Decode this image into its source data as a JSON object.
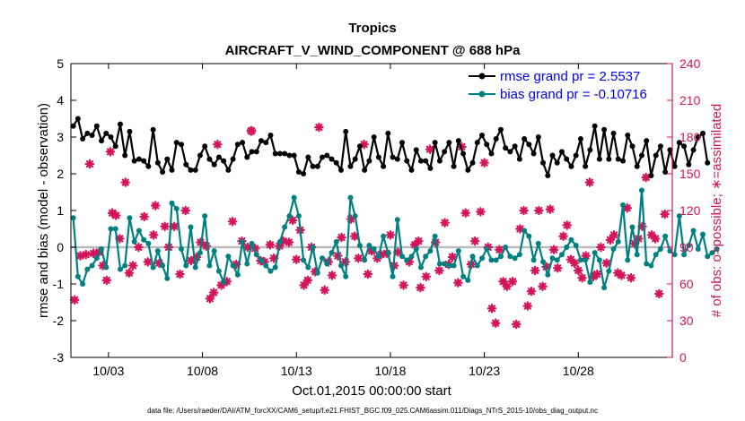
{
  "chart_data": {
    "type": "line",
    "title": "Tropics",
    "subtitle": "AIRCRAFT_V_WIND_COMPONENT @ 688 hPa",
    "xlabel": "Oct.01,2015 00:00:00 start",
    "ylabel": "rmse and bias (model - observation)",
    "y2label": "# of obs: o=possible; ∗=assimilated",
    "footnote": "data file: /Users/raeder/DAI/ATM_forcXX/CAM6_setup/f.e21.FHIST_BGC.f09_025.CAM6assim.011/Diags_NTrS_2015-10/obs_diag_output.nc",
    "xlim": [
      1,
      33.0
    ],
    "ylim": [
      -3,
      5
    ],
    "y2lim": [
      0,
      240
    ],
    "grid": false,
    "legend_position": "top-right",
    "x_tick_values": [
      3,
      8,
      13,
      18,
      23,
      28
    ],
    "x_tick_labels": [
      "10/03",
      "10/08",
      "10/13",
      "10/18",
      "10/23",
      "10/28"
    ],
    "y_ticks": [
      -3,
      -2,
      -1,
      0,
      1,
      2,
      3,
      4,
      5
    ],
    "y2_ticks": [
      0,
      30,
      60,
      90,
      120,
      150,
      180,
      210,
      240
    ],
    "legend": [
      {
        "label": "rmse grand pr = 2.5537",
        "color": "#000000"
      },
      {
        "label": "bias grand pr = -0.10716",
        "color": "#008080"
      }
    ],
    "zero_line_value": 0,
    "colors": {
      "rmse": "#000000",
      "bias": "#008080",
      "obs": "#d4145a",
      "zero": "#bbbbbb"
    },
    "series": [
      {
        "name": "rmse",
        "t0": 1.125,
        "dt": 0.25,
        "values": [
          3.3,
          3.5,
          2.95,
          3.1,
          3.05,
          3.3,
          2.9,
          3.1,
          3.0,
          2.75,
          3.35,
          2.5,
          3.15,
          2.35,
          2.4,
          2.35,
          2.2,
          3.2,
          2.3,
          2.05,
          2.4,
          2.1,
          2.85,
          2.8,
          2.25,
          2.1,
          2.1,
          2.5,
          2.75,
          2.4,
          2.25,
          2.45,
          2.35,
          2.1,
          2.4,
          2.8,
          2.85,
          2.45,
          2.6,
          2.6,
          2.9,
          2.85,
          3.05,
          2.55,
          2.55,
          2.55,
          2.5,
          2.5,
          2.05,
          2.0,
          2.45,
          2.2,
          2.2,
          2.45,
          2.5,
          2.4,
          2.3,
          2.1,
          3.15,
          2.2,
          2.4,
          2.75,
          2.1,
          2.35,
          3.0,
          2.45,
          2.2,
          3.1,
          2.45,
          2.4,
          2.85,
          2.35,
          2.1,
          2.65,
          2.35,
          2.35,
          2.15,
          2.85,
          2.35,
          2.6,
          2.85,
          2.2,
          2.9,
          2.55,
          2.1,
          2.3,
          2.85,
          3.05,
          2.8,
          2.55,
          2.95,
          3.2,
          2.7,
          2.6,
          2.75,
          2.4,
          2.95,
          2.8,
          2.55,
          3.0,
          2.3,
          1.95,
          2.5,
          2.3,
          2.6,
          2.4,
          2.2,
          2.5,
          2.95,
          2.2,
          2.65,
          3.3,
          2.4,
          3.2,
          2.4,
          3.1,
          2.4,
          2.35,
          3.05,
          2.75,
          2.2,
          2.5,
          2.9,
          1.95,
          2.5,
          2.75,
          2.05,
          2.65,
          2.2,
          2.85,
          2.75,
          2.25,
          2.65,
          3.0,
          3.1,
          2.3
        ]
      },
      {
        "name": "bias",
        "t0": 1.125,
        "dt": 0.25,
        "values": [
          0.8,
          -0.8,
          -1.0,
          -0.6,
          -0.5,
          -0.3,
          -0.05,
          -0.55,
          0.5,
          0.5,
          -0.6,
          -0.5,
          0.8,
          0.15,
          0.45,
          0.2,
          0.1,
          -0.55,
          -0.1,
          -0.5,
          -0.85,
          1.2,
          1.05,
          -0.05,
          -0.5,
          0.55,
          -0.55,
          -0.15,
          0.85,
          -0.5,
          -0.1,
          -0.65,
          -0.95,
          -0.25,
          -0.5,
          -0.75,
          0.15,
          -0.45,
          0.1,
          -0.2,
          -0.35,
          -0.5,
          -0.65,
          -0.55,
          0.15,
          0.55,
          0.85,
          1.35,
          0.85,
          -0.35,
          -0.55,
          0.0,
          -0.7,
          -0.3,
          -0.45,
          -0.15,
          0.15,
          -0.5,
          -0.8,
          1.35,
          0.85,
          0.05,
          -0.35,
          0.05,
          -0.05,
          -0.25,
          0.3,
          -0.15,
          -0.8,
          0.75,
          -0.25,
          -0.35,
          -0.25,
          -0.05,
          -0.55,
          -0.25,
          -0.1,
          0.3,
          -0.45,
          -0.45,
          -0.5,
          -0.5,
          -0.1,
          -0.8,
          -0.9,
          -0.25,
          -0.5,
          -0.3,
          -0.05,
          -0.35,
          -0.35,
          -0.25,
          0.0,
          -0.25,
          -0.3,
          -0.2,
          0.45,
          0.3,
          -0.35,
          0.1,
          -0.4,
          -0.75,
          -0.3,
          -0.35,
          -0.2,
          0.0,
          0.2,
          0.05,
          -0.35,
          -0.35,
          -0.95,
          -0.15,
          -0.35,
          -1.1,
          -0.65,
          -0.05,
          0.15,
          1.15,
          -0.35,
          0.55,
          -0.2,
          1.55,
          -0.45,
          -0.5,
          -0.2,
          -0.05,
          0.3,
          -0.1,
          -0.2,
          0.85,
          -0.2,
          0.05,
          0.45,
          -0.05,
          0.35,
          -0.25,
          -0.15,
          -0.05
        ]
      },
      {
        "name": "obs assimilated",
        "axis": "right",
        "points": [
          [
            1.2,
            47
          ],
          [
            1.5,
            83
          ],
          [
            1.8,
            84
          ],
          [
            2.0,
            158
          ],
          [
            2.2,
            85
          ],
          [
            2.5,
            86
          ],
          [
            2.7,
            75
          ],
          [
            2.9,
            63
          ],
          [
            3.1,
            168
          ],
          [
            3.2,
            118
          ],
          [
            3.4,
            116
          ],
          [
            3.6,
            97
          ],
          [
            3.9,
            143
          ],
          [
            4.1,
            69
          ],
          [
            4.3,
            75
          ],
          [
            4.6,
            90
          ],
          [
            4.9,
            115
          ],
          [
            5.1,
            78
          ],
          [
            5.4,
            100
          ],
          [
            5.5,
            124
          ],
          [
            5.7,
            77
          ],
          [
            6.0,
            107
          ],
          [
            6.2,
            90
          ],
          [
            6.5,
            107
          ],
          [
            6.8,
            68
          ],
          [
            7.1,
            120
          ],
          [
            7.4,
            79
          ],
          [
            7.7,
            82
          ],
          [
            7.9,
            94
          ],
          [
            8.2,
            91
          ],
          [
            8.4,
            48
          ],
          [
            8.6,
            53
          ],
          [
            8.8,
            174
          ],
          [
            9.0,
            59
          ],
          [
            9.3,
            62
          ],
          [
            9.6,
            111
          ],
          [
            9.8,
            76
          ],
          [
            10.1,
            95
          ],
          [
            10.4,
            90
          ],
          [
            10.6,
            185
          ],
          [
            10.8,
            89
          ],
          [
            11.1,
            79
          ],
          [
            11.3,
            78
          ],
          [
            11.6,
            92
          ],
          [
            11.8,
            81
          ],
          [
            12.1,
            91
          ],
          [
            12.3,
            95
          ],
          [
            12.6,
            94
          ],
          [
            12.8,
            112
          ],
          [
            13.0,
            80
          ],
          [
            13.2,
            104
          ],
          [
            13.4,
            59
          ],
          [
            13.6,
            63
          ],
          [
            13.8,
            90
          ],
          [
            14.0,
            70
          ],
          [
            14.2,
            188
          ],
          [
            14.5,
            55
          ],
          [
            14.7,
            78
          ],
          [
            14.9,
            67
          ],
          [
            15.2,
            83
          ],
          [
            15.4,
            98
          ],
          [
            15.6,
            78
          ],
          [
            15.9,
            113
          ],
          [
            16.1,
            99
          ],
          [
            16.3,
            81
          ],
          [
            16.6,
            174
          ],
          [
            16.8,
            68
          ],
          [
            17.0,
            87
          ],
          [
            17.3,
            81
          ],
          [
            17.5,
            84
          ],
          [
            17.8,
            85
          ],
          [
            18.0,
            100
          ],
          [
            18.2,
            75
          ],
          [
            18.4,
            86
          ],
          [
            18.7,
            59
          ],
          [
            19.0,
            78
          ],
          [
            19.3,
            92
          ],
          [
            19.5,
            95
          ],
          [
            19.6,
            57
          ],
          [
            19.9,
            66
          ],
          [
            20.1,
            170
          ],
          [
            20.4,
            94
          ],
          [
            20.6,
            71
          ],
          [
            20.9,
            110
          ],
          [
            21.1,
            76
          ],
          [
            21.3,
            82
          ],
          [
            21.6,
            61
          ],
          [
            21.8,
            172
          ],
          [
            22.0,
            118
          ],
          [
            22.3,
            76
          ],
          [
            22.5,
            95
          ],
          [
            22.8,
            119
          ],
          [
            23.0,
            159
          ],
          [
            23.2,
            90
          ],
          [
            23.4,
            40
          ],
          [
            23.6,
            28
          ],
          [
            23.8,
            88
          ],
          [
            24.0,
            62
          ],
          [
            24.2,
            58
          ],
          [
            24.5,
            62
          ],
          [
            24.7,
            27
          ],
          [
            24.9,
            105
          ],
          [
            25.1,
            120
          ],
          [
            25.3,
            42
          ],
          [
            25.5,
            54
          ],
          [
            25.7,
            71
          ],
          [
            25.9,
            120
          ],
          [
            26.1,
            58
          ],
          [
            26.3,
            74
          ],
          [
            26.5,
            121
          ],
          [
            26.7,
            88
          ],
          [
            26.9,
            73
          ],
          [
            27.2,
            99
          ],
          [
            27.4,
            108
          ],
          [
            27.6,
            80
          ],
          [
            27.8,
            77
          ],
          [
            28.0,
            71
          ],
          [
            28.2,
            65
          ],
          [
            28.4,
            83
          ],
          [
            28.6,
            143
          ],
          [
            28.8,
            66
          ],
          [
            29.0,
            68
          ],
          [
            29.2,
            90
          ],
          [
            29.5,
            77
          ],
          [
            29.7,
            96
          ],
          [
            29.9,
            100
          ],
          [
            30.1,
            69
          ],
          [
            30.3,
            67
          ],
          [
            30.6,
            122
          ],
          [
            30.8,
            65
          ],
          [
            31.0,
            93
          ],
          [
            31.2,
            97
          ],
          [
            31.4,
            107
          ],
          [
            31.6,
            147
          ],
          [
            31.9,
            100
          ],
          [
            32.1,
            97
          ],
          [
            32.3,
            52
          ],
          [
            32.6,
            117
          ]
        ]
      },
      {
        "name": "obs possible",
        "axis": "right",
        "marker": "circle",
        "points": [
          [
            10.6,
            185
          ]
        ]
      }
    ]
  }
}
